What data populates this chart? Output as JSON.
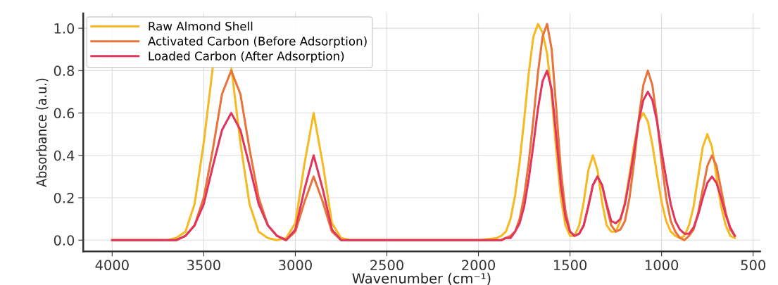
{
  "chart_data": {
    "type": "line",
    "xlabel": "Wavenumber (cm⁻¹)",
    "ylabel": "Absorbance (a.u.)",
    "x": [
      4000,
      3750,
      3700,
      3650,
      3600,
      3550,
      3500,
      3450,
      3400,
      3350,
      3300,
      3250,
      3200,
      3150,
      3100,
      3050,
      3000,
      2950,
      2900,
      2850,
      2800,
      2750,
      2700,
      2000,
      1900,
      1875,
      1850,
      1825,
      1800,
      1775,
      1750,
      1725,
      1700,
      1675,
      1650,
      1625,
      1600,
      1575,
      1550,
      1525,
      1500,
      1475,
      1450,
      1425,
      1400,
      1375,
      1350,
      1325,
      1300,
      1275,
      1250,
      1225,
      1200,
      1175,
      1150,
      1125,
      1100,
      1075,
      1050,
      1025,
      1000,
      975,
      950,
      925,
      900,
      875,
      850,
      825,
      800,
      775,
      750,
      725,
      700,
      675,
      650,
      625,
      600
    ],
    "series": [
      {
        "name": "Raw Almond Shell",
        "color": "#f5b921",
        "values": [
          0,
          0,
          0,
          0.01,
          0.04,
          0.17,
          0.46,
          0.82,
          null,
          0.82,
          0.46,
          0.17,
          0.04,
          0.01,
          0,
          0.01,
          0.08,
          0.36,
          0.6,
          0.36,
          0.08,
          0.01,
          0,
          0,
          0.01,
          0.02,
          0.04,
          0.1,
          0.21,
          0.37,
          0.57,
          0.79,
          0.96,
          1.02,
          0.98,
          0.88,
          0.68,
          0.42,
          0.2,
          0.07,
          0.02,
          0.02,
          0.07,
          0.18,
          0.33,
          0.4,
          0.33,
          0.18,
          0.07,
          0.04,
          0.04,
          0.09,
          0.18,
          0.31,
          0.45,
          0.56,
          0.6,
          0.56,
          0.45,
          0.31,
          0.18,
          0.09,
          0.04,
          0.02,
          0.01,
          0.02,
          0.07,
          0.16,
          0.3,
          0.44,
          0.5,
          0.44,
          0.3,
          0.16,
          0.07,
          0.02,
          0.01
        ]
      },
      {
        "name": "Activated Carbon (Before Adsorption)",
        "color": "#e8743b",
        "values": [
          0,
          0,
          0,
          0,
          0.02,
          0.07,
          0.2,
          0.43,
          0.69,
          0.8,
          0.69,
          0.43,
          0.2,
          0.07,
          0.02,
          0,
          0.04,
          0.18,
          0.3,
          0.18,
          0.04,
          0,
          0,
          0,
          0,
          0,
          0.01,
          0.02,
          0.04,
          0.1,
          0.21,
          0.37,
          0.57,
          0.79,
          0.96,
          1.02,
          0.9,
          0.62,
          0.33,
          0.14,
          0.04,
          0.02,
          0.03,
          0.07,
          0.16,
          0.26,
          0.3,
          0.26,
          0.16,
          0.07,
          0.04,
          0.05,
          0.09,
          0.2,
          0.37,
          0.57,
          0.73,
          0.8,
          0.73,
          0.57,
          0.37,
          0.2,
          0.09,
          0.04,
          0.01,
          0,
          0.02,
          0.05,
          0.13,
          0.24,
          0.35,
          0.4,
          0.35,
          0.24,
          0.13,
          0.05,
          0.02
        ]
      },
      {
        "name": "Loaded Carbon (After Adsorption)",
        "color": "#e0365e",
        "values": [
          0,
          0,
          0,
          0,
          0.02,
          0.07,
          0.17,
          0.35,
          0.52,
          0.6,
          0.52,
          0.35,
          0.17,
          0.07,
          0.02,
          0,
          0.05,
          0.24,
          0.4,
          0.24,
          0.05,
          0,
          0,
          0,
          0,
          0,
          0.01,
          0.01,
          0.04,
          0.08,
          0.16,
          0.29,
          0.45,
          0.62,
          0.75,
          0.8,
          0.71,
          0.49,
          0.26,
          0.11,
          0.04,
          0.02,
          0.03,
          0.07,
          0.16,
          0.26,
          0.3,
          0.26,
          0.17,
          0.09,
          0.08,
          0.1,
          0.17,
          0.29,
          0.42,
          0.56,
          0.66,
          0.7,
          0.66,
          0.56,
          0.42,
          0.29,
          0.17,
          0.09,
          0.05,
          0.03,
          0.03,
          0.06,
          0.12,
          0.2,
          0.27,
          0.3,
          0.27,
          0.2,
          0.12,
          0.06,
          0.02
        ]
      }
    ],
    "xlim": [
      4158,
      462
    ],
    "xticks": [
      4000,
      3500,
      3000,
      2500,
      2000,
      1500,
      1000,
      500
    ],
    "ylim": [
      -0.053,
      1.07
    ],
    "yticks": [
      {
        "value": 0,
        "label": "0.0"
      },
      0.2,
      0.4,
      0.6,
      0.8,
      {
        "value": 1,
        "label": "1.0"
      }
    ],
    "grid": true,
    "legend": "top left",
    "line_style": "solid",
    "marker": "none"
  }
}
